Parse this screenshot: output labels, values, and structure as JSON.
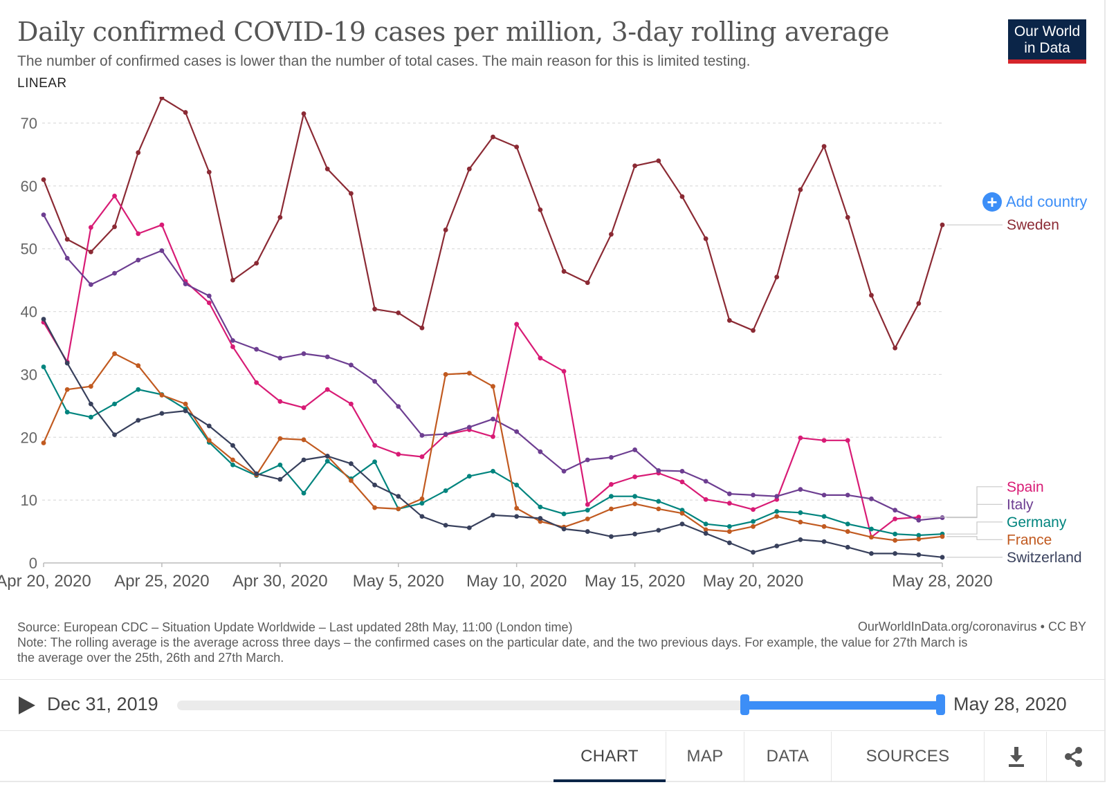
{
  "header": {
    "title": "Daily confirmed COVID-19 cases per million, 3-day rolling average",
    "subtitle": "The number of confirmed cases is lower than the number of total cases. The main reason for this is limited testing.",
    "scale_toggle": "LINEAR",
    "logo_line1": "Our World",
    "logo_line2": "in Data"
  },
  "add_country": "Add country",
  "chart_data": {
    "type": "line",
    "title": "Daily confirmed COVID-19 cases per million, 3-day rolling average",
    "ylim": [
      0,
      75
    ],
    "yticks": [
      0,
      10,
      20,
      30,
      40,
      50,
      60,
      70
    ],
    "x_dates": [
      "Apr 20",
      "Apr 21",
      "Apr 22",
      "Apr 23",
      "Apr 24",
      "Apr 25",
      "Apr 26",
      "Apr 27",
      "Apr 28",
      "Apr 29",
      "Apr 30",
      "May 1",
      "May 2",
      "May 3",
      "May 4",
      "May 5",
      "May 6",
      "May 7",
      "May 8",
      "May 9",
      "May 10",
      "May 11",
      "May 12",
      "May 13",
      "May 14",
      "May 15",
      "May 16",
      "May 17",
      "May 18",
      "May 19",
      "May 20",
      "May 21",
      "May 22",
      "May 23",
      "May 24",
      "May 25",
      "May 26",
      "May 27",
      "May 28"
    ],
    "xtick_labels": [
      {
        "index": 0,
        "label": "Apr 20, 2020"
      },
      {
        "index": 5,
        "label": "Apr 25, 2020"
      },
      {
        "index": 10,
        "label": "Apr 30, 2020"
      },
      {
        "index": 15,
        "label": "May 5, 2020"
      },
      {
        "index": 20,
        "label": "May 10, 2020"
      },
      {
        "index": 25,
        "label": "May 15, 2020"
      },
      {
        "index": 30,
        "label": "May 20, 2020"
      },
      {
        "index": 38,
        "label": "May 28, 2020"
      }
    ],
    "grid": true,
    "legend": "right",
    "series": [
      {
        "name": "Sweden",
        "color": "#8b2a34",
        "values": [
          61,
          51.5,
          49.5,
          53.5,
          65.3,
          74,
          71.7,
          62.2,
          45,
          47.7,
          55,
          71.5,
          62.7,
          58.8,
          40.4,
          39.8,
          37.4,
          53,
          62.7,
          67.8,
          66.2,
          56.2,
          46.4,
          44.6,
          52.3,
          63.2,
          64,
          58.3,
          51.6,
          38.6,
          37,
          45.5,
          59.4,
          66.3,
          55,
          42.6,
          34.2,
          41.3,
          53.8
        ]
      },
      {
        "name": "Spain",
        "color": "#d81b75",
        "values": [
          38.3,
          32,
          53.4,
          58.4,
          52.4,
          53.8,
          44.8,
          41.4,
          34.4,
          28.7,
          25.7,
          24.7,
          27.6,
          25.3,
          18.7,
          17.3,
          16.9,
          20.4,
          21.2,
          20.1,
          38,
          32.6,
          30.5,
          9.3,
          12.5,
          13.7,
          14.3,
          12.9,
          10.1,
          9.5,
          8.5,
          10.1,
          19.9,
          19.5,
          19.5,
          4.1,
          7,
          7.3,
          null
        ]
      },
      {
        "name": "Italy",
        "color": "#6d3e91",
        "values": [
          55.4,
          48.5,
          44.3,
          46.1,
          48.2,
          49.7,
          44.4,
          42.5,
          35.4,
          34,
          32.6,
          33.3,
          32.8,
          31.5,
          28.9,
          24.9,
          20.3,
          20.5,
          21.6,
          22.9,
          20.9,
          17.7,
          14.6,
          16.4,
          16.8,
          18,
          14.7,
          14.6,
          13,
          11,
          10.8,
          10.6,
          11.7,
          10.8,
          10.8,
          10.2,
          8.4,
          6.8,
          7.2
        ]
      },
      {
        "name": "Germany",
        "color": "#00847e",
        "values": [
          31.2,
          24,
          23.2,
          25.3,
          27.6,
          26.8,
          24.5,
          19.2,
          15.6,
          13.9,
          15.6,
          11.1,
          16.2,
          13.4,
          16.1,
          8.6,
          9.5,
          11.5,
          13.8,
          14.6,
          12.4,
          8.9,
          7.8,
          8.4,
          10.6,
          10.6,
          9.8,
          8.4,
          6.2,
          5.8,
          6.6,
          8.2,
          8,
          7.4,
          6.2,
          5.4,
          4.6,
          4.4,
          4.6
        ]
      },
      {
        "name": "France",
        "color": "#c15a20",
        "values": [
          19.1,
          27.6,
          28.1,
          33.3,
          31.4,
          26.7,
          25.3,
          19.5,
          16.4,
          14,
          19.8,
          19.6,
          17,
          13.1,
          8.8,
          8.6,
          10.2,
          30,
          30.2,
          28.1,
          8.7,
          6.6,
          5.7,
          7,
          8.6,
          9.4,
          8.6,
          7.9,
          5.3,
          5,
          5.8,
          7.4,
          6.5,
          5.8,
          5,
          4.1,
          3.6,
          3.8,
          4.2
        ]
      },
      {
        "name": "Switzerland",
        "color": "#38405c",
        "values": [
          38.8,
          31.8,
          25.3,
          20.4,
          22.7,
          23.8,
          24.2,
          21.8,
          18.7,
          14.2,
          13.3,
          16.4,
          17,
          15.8,
          12.4,
          10.6,
          7.4,
          6,
          5.6,
          7.6,
          7.4,
          7.1,
          5.4,
          5,
          4.2,
          4.6,
          5.2,
          6.2,
          4.7,
          3.2,
          1.7,
          2.7,
          3.7,
          3.4,
          2.5,
          1.5,
          1.5,
          1.3,
          0.9
        ]
      }
    ]
  },
  "footer": {
    "source": "Source: European CDC – Situation Update Worldwide – Last updated 28th May, 11:00 (London time)",
    "note": "Note: The rolling average is the average across three days – the confirmed cases on the particular date, and the two previous days. For example, the value for 27th March is the average over the 25th, 26th and 27th March.",
    "url": "OurWorldInData.org/coronavirus • CC BY"
  },
  "timeline": {
    "start": "Dec 31, 2019",
    "end": "May 28, 2020"
  },
  "tabs": [
    {
      "label": "CHART"
    },
    {
      "label": "MAP"
    },
    {
      "label": "DATA"
    },
    {
      "label": "SOURCES"
    }
  ],
  "icons": {
    "download": "download-icon",
    "share": "share-icon",
    "play": "play-icon"
  }
}
